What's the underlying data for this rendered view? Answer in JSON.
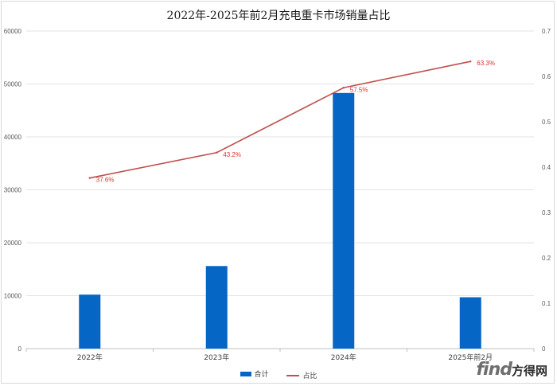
{
  "chart_data": {
    "type": "bar",
    "title": "2022年-2025年前2月充电重卡市场销量占比",
    "categories": [
      "2022年",
      "2023年",
      "2024年",
      "2025年前2月"
    ],
    "series": [
      {
        "name": "合计",
        "type": "bar",
        "axis": "left",
        "values": [
          10200,
          15600,
          48300,
          9700
        ],
        "color": "#0566c6"
      },
      {
        "name": "占比",
        "type": "line",
        "axis": "right",
        "values": [
          0.376,
          0.432,
          0.575,
          0.633
        ],
        "labels": [
          "37.6%",
          "43.2%",
          "57.5%",
          "63.3%"
        ],
        "color": "#c0504d"
      }
    ],
    "y_left": {
      "min": 0,
      "max": 60000,
      "ticks": [
        "0",
        "10000",
        "20000",
        "30000",
        "40000",
        "50000",
        "60000"
      ]
    },
    "y_right": {
      "min": 0,
      "max": 0.7,
      "ticks": [
        "0",
        "0.1",
        "0.2",
        "0.3",
        "0.4",
        "0.5",
        "0.6",
        "0.7"
      ]
    },
    "grid": true,
    "legend_position": "bottom"
  },
  "legend": {
    "bar_label": "合计",
    "line_label": "占比"
  },
  "watermark": {
    "latin": "find",
    "cn": "方得网"
  }
}
